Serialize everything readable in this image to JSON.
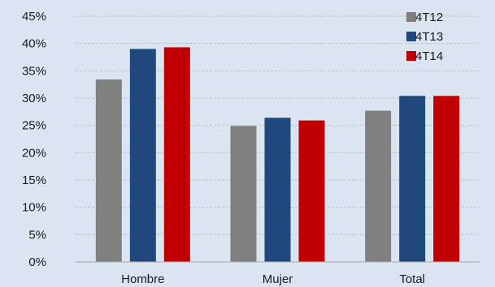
{
  "chart_data": {
    "type": "bar",
    "categories": [
      "Hombre",
      "Mujer",
      "Total"
    ],
    "series": [
      {
        "name": "4T12",
        "values": [
          33.4,
          24.9,
          27.7
        ],
        "color": "#808080"
      },
      {
        "name": "4T13",
        "values": [
          39.0,
          26.4,
          30.4
        ],
        "color": "#1f497d"
      },
      {
        "name": "4T14",
        "values": [
          39.3,
          25.9,
          30.4
        ],
        "color": "#c00000"
      }
    ],
    "ylim": [
      0,
      45
    ],
    "yticks": [
      "0%",
      "5%",
      "10%",
      "15%",
      "20%",
      "25%",
      "30%",
      "35%",
      "40%",
      "45%"
    ],
    "grid": true,
    "legend_position": "top-right"
  }
}
